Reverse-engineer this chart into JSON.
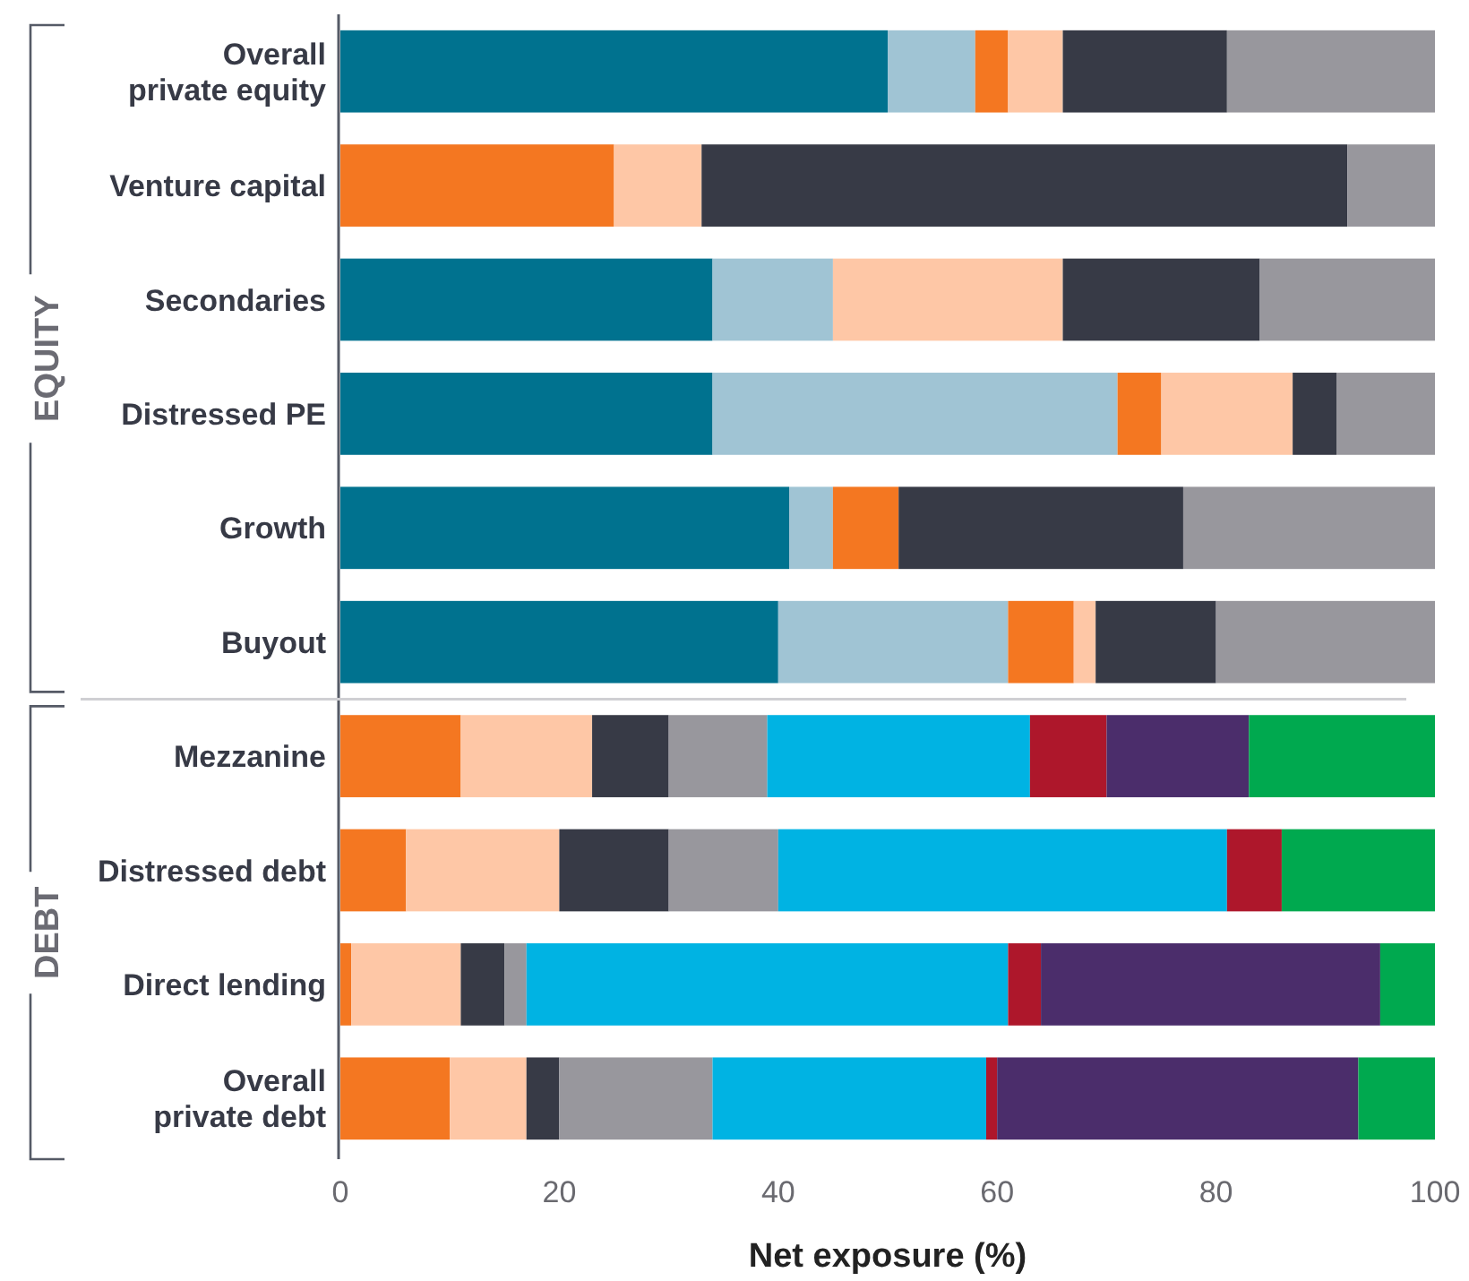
{
  "chart_data": {
    "type": "bar",
    "orientation": "horizontal",
    "stacked": true,
    "xlabel": "Net exposure (%)",
    "categories": [
      "Overall\nprivate equity",
      "Venture capital",
      "Secondaries",
      "Distressed PE",
      "Growth",
      "Buyout",
      "Mezzanine",
      "Distressed debt",
      "Direct lending",
      "Overall\nprivate debt"
    ],
    "series": [
      {
        "color": "#00728f",
        "values": [
          50,
          0,
          34,
          34,
          41,
          40,
          0,
          0,
          0,
          0
        ]
      },
      {
        "color": "#a0c4d4",
        "values": [
          8,
          0,
          11,
          37,
          4,
          21,
          0,
          0,
          0,
          0
        ]
      },
      {
        "color": "#f47721",
        "values": [
          3,
          25,
          0,
          4,
          6,
          6,
          11,
          6,
          1,
          10
        ]
      },
      {
        "color": "#fec7a6",
        "values": [
          5,
          8,
          21,
          12,
          0,
          2,
          12,
          14,
          10,
          7
        ]
      },
      {
        "color": "#373a46",
        "values": [
          15,
          59,
          18,
          4,
          26,
          11,
          7,
          10,
          4,
          3
        ]
      },
      {
        "color": "#98979d",
        "values": [
          19,
          8,
          16,
          9,
          23,
          20,
          9,
          10,
          2,
          14
        ]
      },
      {
        "color": "#00b3e3",
        "values": [
          0,
          0,
          0,
          0,
          0,
          0,
          24,
          41,
          44,
          25
        ]
      },
      {
        "color": "#ae172b",
        "values": [
          0,
          0,
          0,
          0,
          0,
          0,
          7,
          5,
          3,
          1
        ]
      },
      {
        "color": "#4b2d6b",
        "values": [
          0,
          0,
          0,
          0,
          0,
          0,
          13,
          0,
          31,
          33
        ]
      },
      {
        "color": "#00a94f",
        "values": [
          0,
          0,
          0,
          0,
          0,
          0,
          17,
          14,
          5,
          7
        ]
      }
    ],
    "xlim": [
      0,
      100
    ],
    "xticks": [
      0,
      20,
      40,
      60,
      80,
      100
    ],
    "annotations": [
      "EQUITY",
      "DEBT"
    ]
  }
}
